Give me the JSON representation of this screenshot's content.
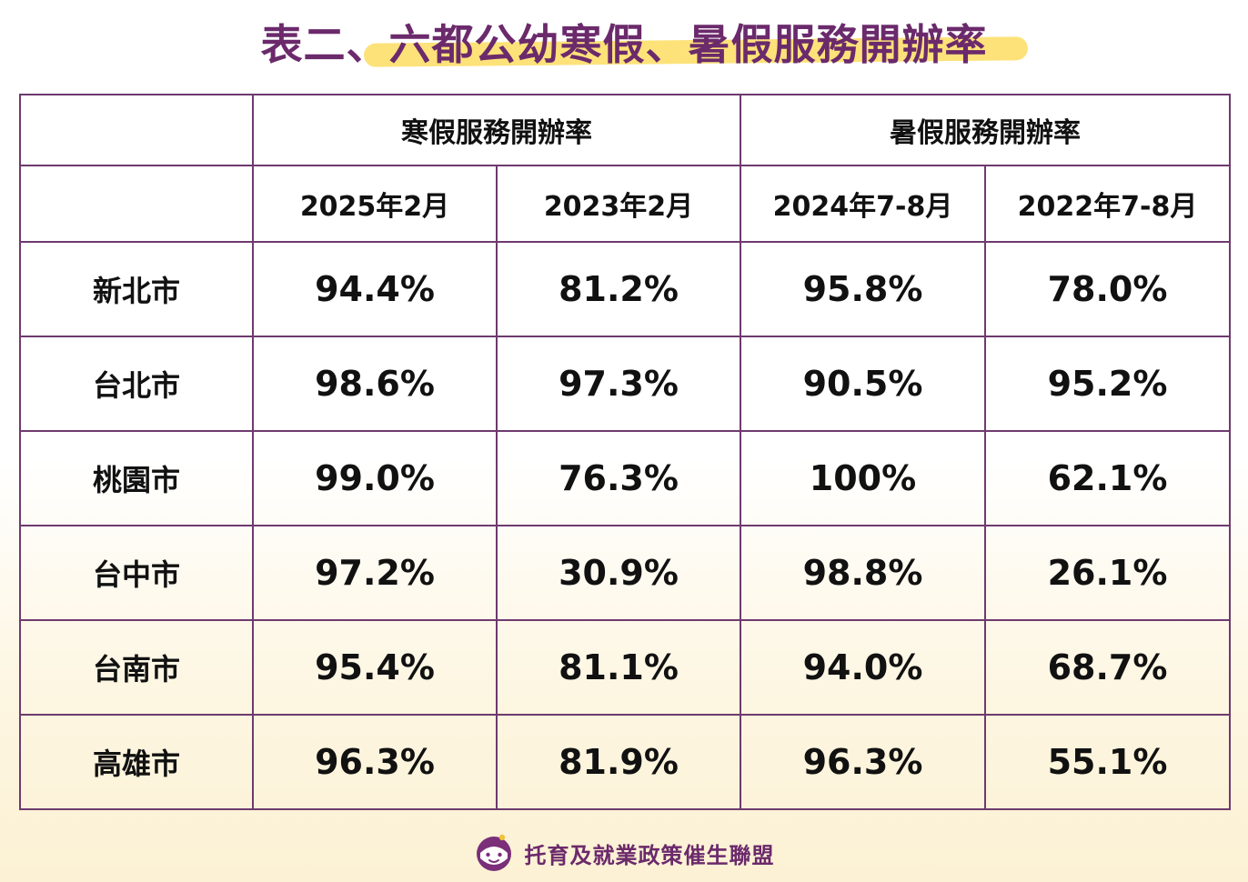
{
  "title": "表二、六都公幼寒假、暑假服務開辦率",
  "table": {
    "group_headers": [
      "",
      "寒假服務開辦率",
      "暑假服務開辦率"
    ],
    "period_headers": [
      "",
      "2025年2月",
      "2023年2月",
      "2024年7-8月",
      "2022年7-8月"
    ],
    "rows": [
      {
        "city": "新北市",
        "values": [
          "94.4%",
          "81.2%",
          "95.8%",
          "78.0%"
        ]
      },
      {
        "city": "台北市",
        "values": [
          "98.6%",
          "97.3%",
          "90.5%",
          "95.2%"
        ]
      },
      {
        "city": "桃園市",
        "values": [
          "99.0%",
          "76.3%",
          "100%",
          "62.1%"
        ]
      },
      {
        "city": "台中市",
        "values": [
          "97.2%",
          "30.9%",
          "98.8%",
          "26.1%"
        ]
      },
      {
        "city": "台南市",
        "values": [
          "95.4%",
          "81.1%",
          "94.0%",
          "68.7%"
        ]
      },
      {
        "city": "高雄市",
        "values": [
          "96.3%",
          "81.9%",
          "96.3%",
          "55.1%"
        ]
      }
    ]
  },
  "footer": {
    "organization": "托育及就業政策催生聯盟",
    "logo_icon": "smiling-child-face-icon"
  },
  "colors": {
    "title": "#6b2a6b",
    "highlight": "#fde27a",
    "border": "#6e3a6e",
    "background_bottom": "#fcf1d4"
  }
}
